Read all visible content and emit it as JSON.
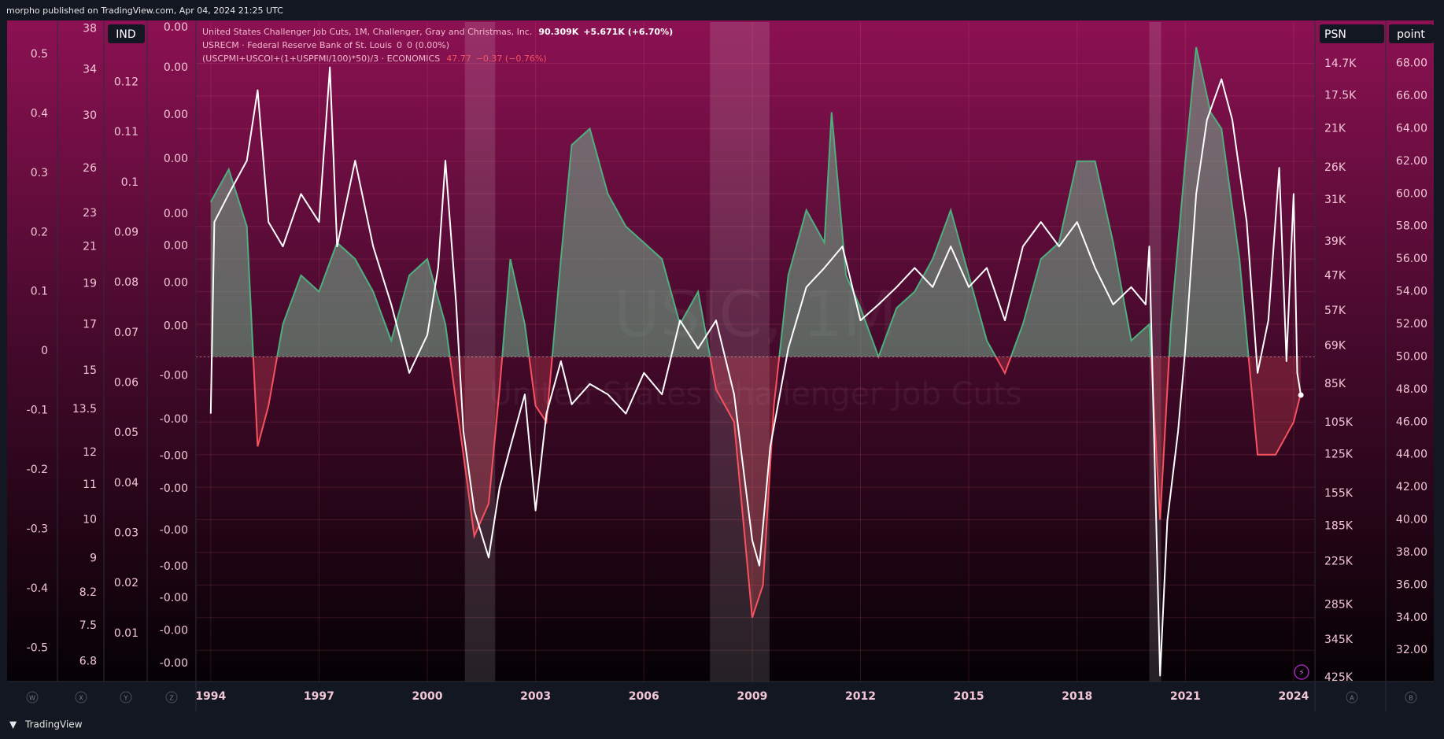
{
  "chart_data": {
    "type": "line",
    "title": "morpho published on TradingView.com, Apr 04, 2024 21:25 UTC",
    "watermark": [
      "USJC, 1M",
      "United States Challenger Job Cuts"
    ],
    "footer": "TradingView",
    "xlim": [
      1993.59,
      2024.59
    ],
    "xticks": [
      1994,
      1997,
      2000,
      2003,
      2006,
      2009,
      2012,
      2015,
      2018,
      2021,
      2024
    ],
    "grid": true,
    "y_label": "point",
    "ylim": [
      30.08,
      70.54
    ],
    "yticks": [
      {
        "value": 68,
        "label": "68.00"
      },
      {
        "value": 66,
        "label": "66.00"
      },
      {
        "value": 64,
        "label": "64.00"
      },
      {
        "value": 62,
        "label": "62.00"
      },
      {
        "value": 60,
        "label": "60.00"
      },
      {
        "value": 58,
        "label": "58.00"
      },
      {
        "value": 56,
        "label": "56.00"
      },
      {
        "value": 54,
        "label": "54.00"
      },
      {
        "value": 52,
        "label": "52.00"
      },
      {
        "value": 50,
        "label": "50.00"
      },
      {
        "value": 48,
        "label": "48.00"
      },
      {
        "value": 46,
        "label": "46.00"
      },
      {
        "value": 44,
        "label": "44.00"
      },
      {
        "value": 42,
        "label": "42.00"
      },
      {
        "value": 40,
        "label": "40.00"
      },
      {
        "value": 38,
        "label": "38.00"
      },
      {
        "value": 36,
        "label": "36.00"
      },
      {
        "value": 34,
        "label": "34.00"
      },
      {
        "value": 32,
        "label": "32.00"
      }
    ],
    "y2_label": "PSN",
    "y2lim": [
      11700,
      434000
    ],
    "y2_log": true,
    "y2_inverted": true,
    "y2ticks": [
      {
        "value": 14700,
        "label": "14.7K"
      },
      {
        "value": 17500,
        "label": "17.5K"
      },
      {
        "value": 21000,
        "label": "21K"
      },
      {
        "value": 26000,
        "label": "26K"
      },
      {
        "value": 31000,
        "label": "31K"
      },
      {
        "value": 39000,
        "label": "39K"
      },
      {
        "value": 47000,
        "label": "47K"
      },
      {
        "value": 57000,
        "label": "57K"
      },
      {
        "value": 69000,
        "label": "69K"
      },
      {
        "value": 85000,
        "label": "85K"
      },
      {
        "value": 105000,
        "label": "105K"
      },
      {
        "value": 125000,
        "label": "125K"
      },
      {
        "value": 155000,
        "label": "155K"
      },
      {
        "value": 185000,
        "label": "185K"
      },
      {
        "value": 225000,
        "label": "225K"
      },
      {
        "value": 285000,
        "label": "285K"
      },
      {
        "value": 345000,
        "label": "345K"
      },
      {
        "value": 425000,
        "label": "425K"
      }
    ],
    "left_axes": [
      {
        "lim": [
          -0.556,
          0.554
        ],
        "ticks": [
          0.5,
          0.4,
          0.3,
          0.2,
          0.1,
          0,
          -0.1,
          -0.2,
          -0.3,
          -0.4,
          -0.5
        ]
      },
      {
        "lim": [
          6.44,
          38.7
        ],
        "log": true,
        "ticks": [
          38,
          34,
          30,
          26,
          23,
          21,
          19,
          17,
          15,
          13.5,
          12,
          11,
          10,
          9,
          8.2,
          7.5,
          6.8
        ]
      },
      {
        "label": "IND",
        "lim": [
          0.0004,
          0.132
        ],
        "ticks": [
          0.12,
          0.11,
          0.1,
          0.09,
          0.08,
          0.07,
          0.06,
          0.05,
          0.04,
          0.03,
          0.02,
          0.01
        ]
      },
      {
        "lim": [
          -0.00486,
          0.005
        ],
        "ticks": [
          {
            "value": 0.00492,
            "label": "0.00"
          },
          {
            "value": 0.00432,
            "label": "0.00"
          },
          {
            "value": 0.00361,
            "label": "0.00"
          },
          {
            "value": 0.00295,
            "label": "0.00"
          },
          {
            "value": 0.00213,
            "label": "0.00"
          },
          {
            "value": 0.00165,
            "label": "0.00"
          },
          {
            "value": 0.0011,
            "label": "0.00"
          },
          {
            "value": 0.00045,
            "label": "0.00"
          },
          {
            "value": -0.00029,
            "label": "-0.00"
          },
          {
            "value": -0.00094,
            "label": "-0.00"
          },
          {
            "value": -0.00149,
            "label": "-0.00"
          },
          {
            "value": -0.00198,
            "label": "-0.00"
          },
          {
            "value": -0.0026,
            "label": "-0.00"
          },
          {
            "value": -0.00314,
            "label": "-0.00"
          },
          {
            "value": -0.00361,
            "label": "-0.00"
          },
          {
            "value": -0.0041,
            "label": "-0.00"
          },
          {
            "value": -0.00459,
            "label": "-0.00"
          }
        ]
      }
    ],
    "scale_buttons": [
      "W",
      "X",
      "Y",
      "Z",
      "A",
      "B"
    ],
    "series": [
      {
        "name": "United States Challenger Job Cuts, 1M, Challenger, Gray and Christmas, Inc.",
        "legend_value": "90.309K",
        "legend_change": "+5.671K (+6.70%)",
        "color": "#ffffff",
        "axis": "y2",
        "x": [
          1994.0,
          1994.1,
          1994.5,
          1995.0,
          1995.3,
          1995.6,
          1996.0,
          1996.5,
          1997.0,
          1997.3,
          1997.5,
          1998.0,
          1998.5,
          1999.0,
          1999.5,
          2000.0,
          2000.3,
          2000.5,
          2000.8,
          2001.0,
          2001.3,
          2001.7,
          2002.0,
          2002.3,
          2002.7,
          2003.0,
          2003.3,
          2003.7,
          2004.0,
          2004.5,
          2005.0,
          2005.5,
          2006.0,
          2006.5,
          2007.0,
          2007.5,
          2008.0,
          2008.5,
          2009.0,
          2009.2,
          2009.5,
          2010.0,
          2010.5,
          2011.0,
          2011.5,
          2012.0,
          2012.5,
          2013.0,
          2013.5,
          2014.0,
          2014.5,
          2015.0,
          2015.5,
          2016.0,
          2016.5,
          2017.0,
          2017.5,
          2018.0,
          2018.5,
          2019.0,
          2019.5,
          2019.9,
          2020.0,
          2020.3,
          2020.5,
          2020.8,
          2021.0,
          2021.3,
          2021.6,
          2022.0,
          2022.3,
          2022.7,
          2023.0,
          2023.3,
          2023.6,
          2023.8,
          2024.0,
          2024.1,
          2024.2
        ],
        "values": [
          100000,
          35000,
          30000,
          25000,
          17000,
          35000,
          40000,
          30000,
          35000,
          15000,
          40000,
          25000,
          40000,
          55000,
          80000,
          65000,
          45000,
          25000,
          55000,
          110000,
          170000,
          220000,
          150000,
          120000,
          90000,
          170000,
          100000,
          75000,
          95000,
          85000,
          90000,
          100000,
          80000,
          90000,
          60000,
          70000,
          60000,
          90000,
          200000,
          230000,
          120000,
          70000,
          50000,
          45000,
          40000,
          60000,
          55000,
          50000,
          45000,
          50000,
          40000,
          50000,
          45000,
          60000,
          40000,
          35000,
          40000,
          35000,
          45000,
          55000,
          50000,
          55000,
          40000,
          420000,
          180000,
          110000,
          70000,
          30000,
          20000,
          16000,
          20000,
          35000,
          80000,
          60000,
          26000,
          75000,
          30000,
          80000,
          90309
        ]
      },
      {
        "name": "(USCPMI+USCOI+(1+USPFMI/100)*50)/3 · ECONOMICS",
        "legend_value": "47.77",
        "legend_change": "−0.37 (−0.76%)",
        "color": "#4caf7d",
        "color_below": "#f7525f",
        "fill_baseline": 50,
        "x": [
          1994.0,
          1994.5,
          1995.0,
          1995.3,
          1995.6,
          1996.0,
          1996.5,
          1997.0,
          1997.5,
          1998.0,
          1998.5,
          1999.0,
          1999.5,
          2000.0,
          2000.5,
          2001.0,
          2001.3,
          2001.7,
          2002.0,
          2002.3,
          2002.7,
          2003.0,
          2003.3,
          2003.7,
          2004.0,
          2004.5,
          2005.0,
          2005.5,
          2006.0,
          2006.5,
          2007.0,
          2007.5,
          2008.0,
          2008.5,
          2009.0,
          2009.3,
          2009.6,
          2010.0,
          2010.5,
          2011.0,
          2011.2,
          2011.6,
          2012.0,
          2012.5,
          2013.0,
          2013.5,
          2014.0,
          2014.5,
          2015.0,
          2015.5,
          2016.0,
          2016.5,
          2017.0,
          2017.5,
          2018.0,
          2018.5,
          2019.0,
          2019.5,
          2020.0,
          2020.3,
          2020.6,
          2021.0,
          2021.3,
          2021.7,
          2022.0,
          2022.5,
          2023.0,
          2023.5,
          2024.0,
          2024.2
        ],
        "values": [
          59.5,
          61.5,
          58,
          44.5,
          47,
          52,
          55,
          54,
          57,
          56,
          54,
          51,
          55,
          56,
          52,
          44,
          39,
          41,
          48,
          56,
          52,
          47,
          46,
          56,
          63,
          64,
          60,
          58,
          57,
          56,
          52,
          54,
          48,
          46,
          34,
          36,
          47,
          55,
          59,
          57,
          65,
          55,
          53,
          50,
          53,
          54,
          56,
          59,
          55,
          51,
          49,
          52,
          56,
          57,
          62,
          62,
          57,
          51,
          52,
          40,
          52,
          62,
          69,
          65,
          64,
          56,
          44,
          44,
          46,
          47.77
        ]
      },
      {
        "name": "USRECM · Federal Reserve Bank of St. Louis",
        "legend_value": "0",
        "legend_change": "0 (0.00%)",
        "color": "#ffffff",
        "periods": [
          [
            2001.04,
            2001.88
          ],
          [
            2007.83,
            2009.48
          ],
          [
            2020.0,
            2020.33
          ]
        ]
      }
    ]
  }
}
